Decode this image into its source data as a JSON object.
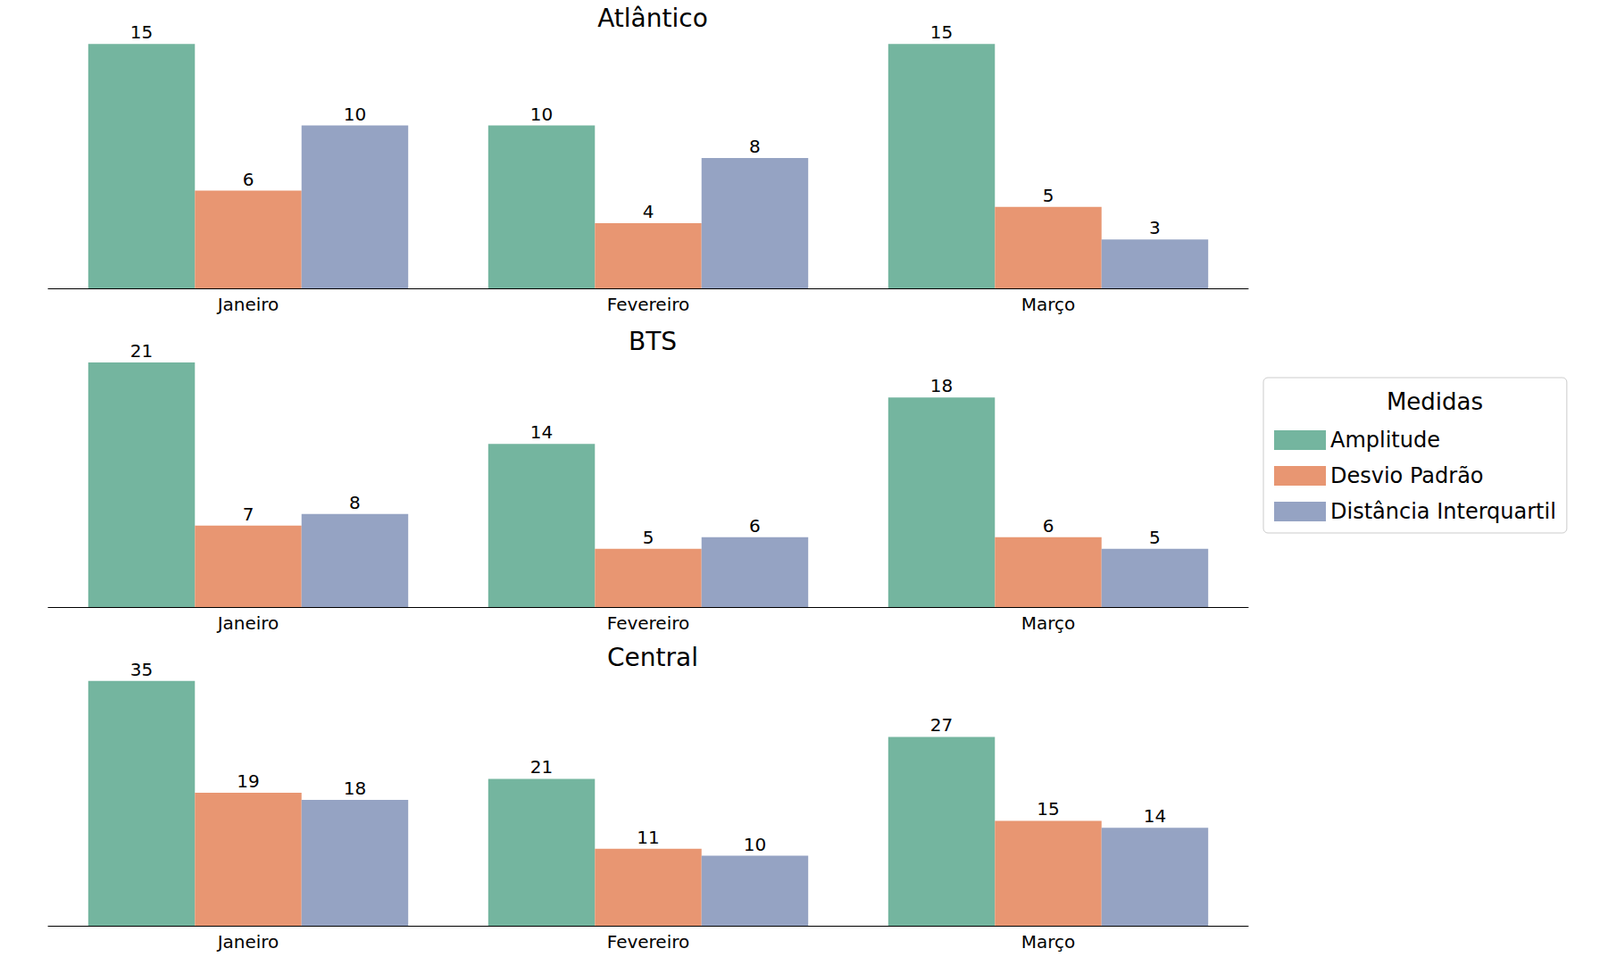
{
  "legend_title": "Medidas",
  "chart_data": [
    {
      "type": "bar",
      "title": "Atlântico",
      "categories": [
        "Janeiro",
        "Fevereiro",
        "Março"
      ],
      "series": [
        {
          "name": "Amplitude",
          "color": "#74b59f",
          "values": [
            15,
            10,
            15
          ]
        },
        {
          "name": "Desvio Padrão",
          "color": "#e89672",
          "values": [
            6,
            4,
            5
          ]
        },
        {
          "name": "Distância Interquartil",
          "color": "#95a3c3",
          "values": [
            10,
            8,
            3
          ]
        }
      ],
      "ylim": [
        0,
        16
      ],
      "data_labels": true,
      "tick_labels": "x",
      "grid": false,
      "legend": "right"
    },
    {
      "type": "bar",
      "title": "BTS",
      "categories": [
        "Janeiro",
        "Fevereiro",
        "Março"
      ],
      "series": [
        {
          "name": "Amplitude",
          "color": "#74b59f",
          "values": [
            21,
            14,
            18
          ]
        },
        {
          "name": "Desvio Padrão",
          "color": "#e89672",
          "values": [
            7,
            5,
            6
          ]
        },
        {
          "name": "Distância Interquartil",
          "color": "#95a3c3",
          "values": [
            8,
            6,
            5
          ]
        }
      ],
      "ylim": [
        0,
        22
      ],
      "data_labels": true,
      "tick_labels": "x",
      "grid": false,
      "legend": "right"
    },
    {
      "type": "bar",
      "title": "Central",
      "categories": [
        "Janeiro",
        "Fevereiro",
        "Março"
      ],
      "series": [
        {
          "name": "Amplitude",
          "color": "#74b59f",
          "values": [
            35,
            21,
            27
          ]
        },
        {
          "name": "Desvio Padrão",
          "color": "#e89672",
          "values": [
            19,
            11,
            15
          ]
        },
        {
          "name": "Distância Interquartil",
          "color": "#95a3c3",
          "values": [
            18,
            10,
            14
          ]
        }
      ],
      "ylim": [
        0,
        37
      ],
      "data_labels": true,
      "tick_labels": "x",
      "grid": false,
      "legend": "right"
    }
  ]
}
